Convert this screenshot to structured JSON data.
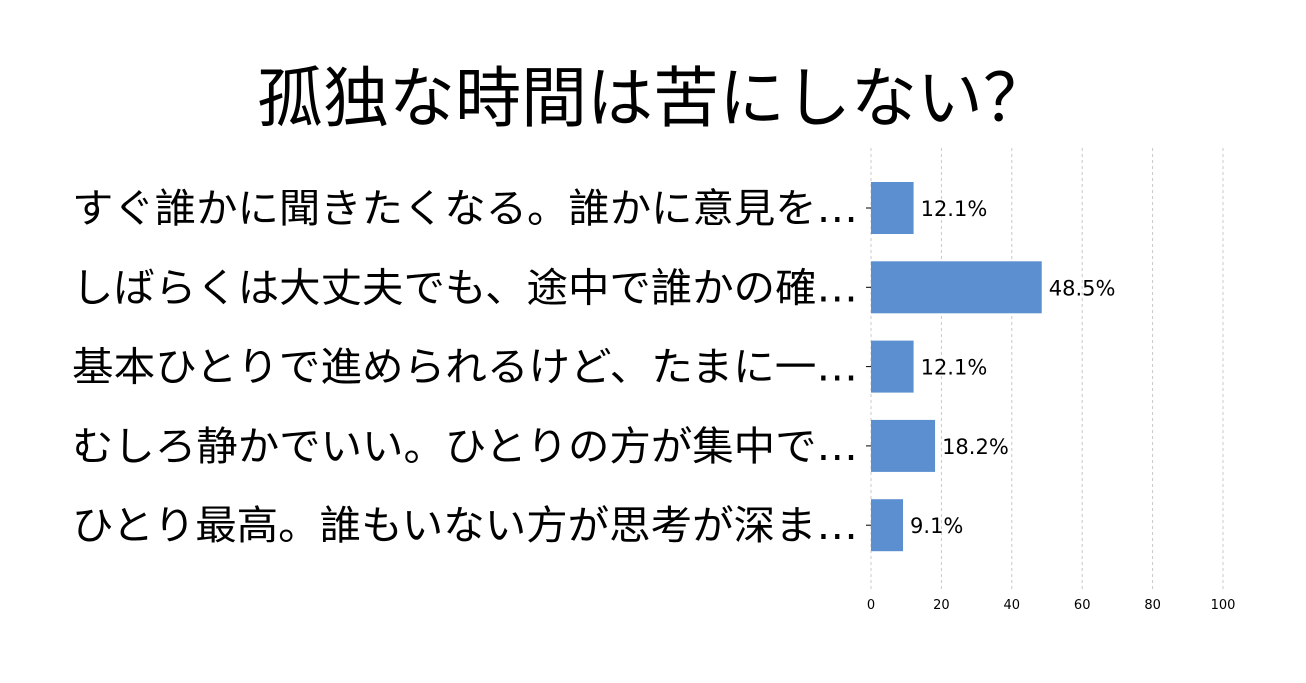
{
  "chart_data": {
    "type": "bar",
    "orientation": "horizontal",
    "title": "孤独な時間は苦にしない？",
    "categories": [
      "すぐ誰かに聞きたくなる。誰かに意見を…",
      "しばらくは大丈夫でも、途中で誰かの確…",
      "基本ひとりで進められるけど、たまに一…",
      "むしろ静かでいい。ひとりの方が集中で…",
      "ひとり最高。誰もいない方が思考が深ま…"
    ],
    "values": [
      12.1,
      48.5,
      12.1,
      18.2,
      9.1
    ],
    "value_labels": [
      "12.1%",
      "48.5%",
      "12.1%",
      "18.2%",
      "9.1%"
    ],
    "xlim": [
      0,
      100
    ],
    "xticks": [
      "0",
      "20",
      "40",
      "60",
      "80",
      "100"
    ],
    "xlabel": "",
    "ylabel": "",
    "grid": "vertical dashed",
    "legend": "none",
    "bar_color": "#5b8fd0"
  }
}
